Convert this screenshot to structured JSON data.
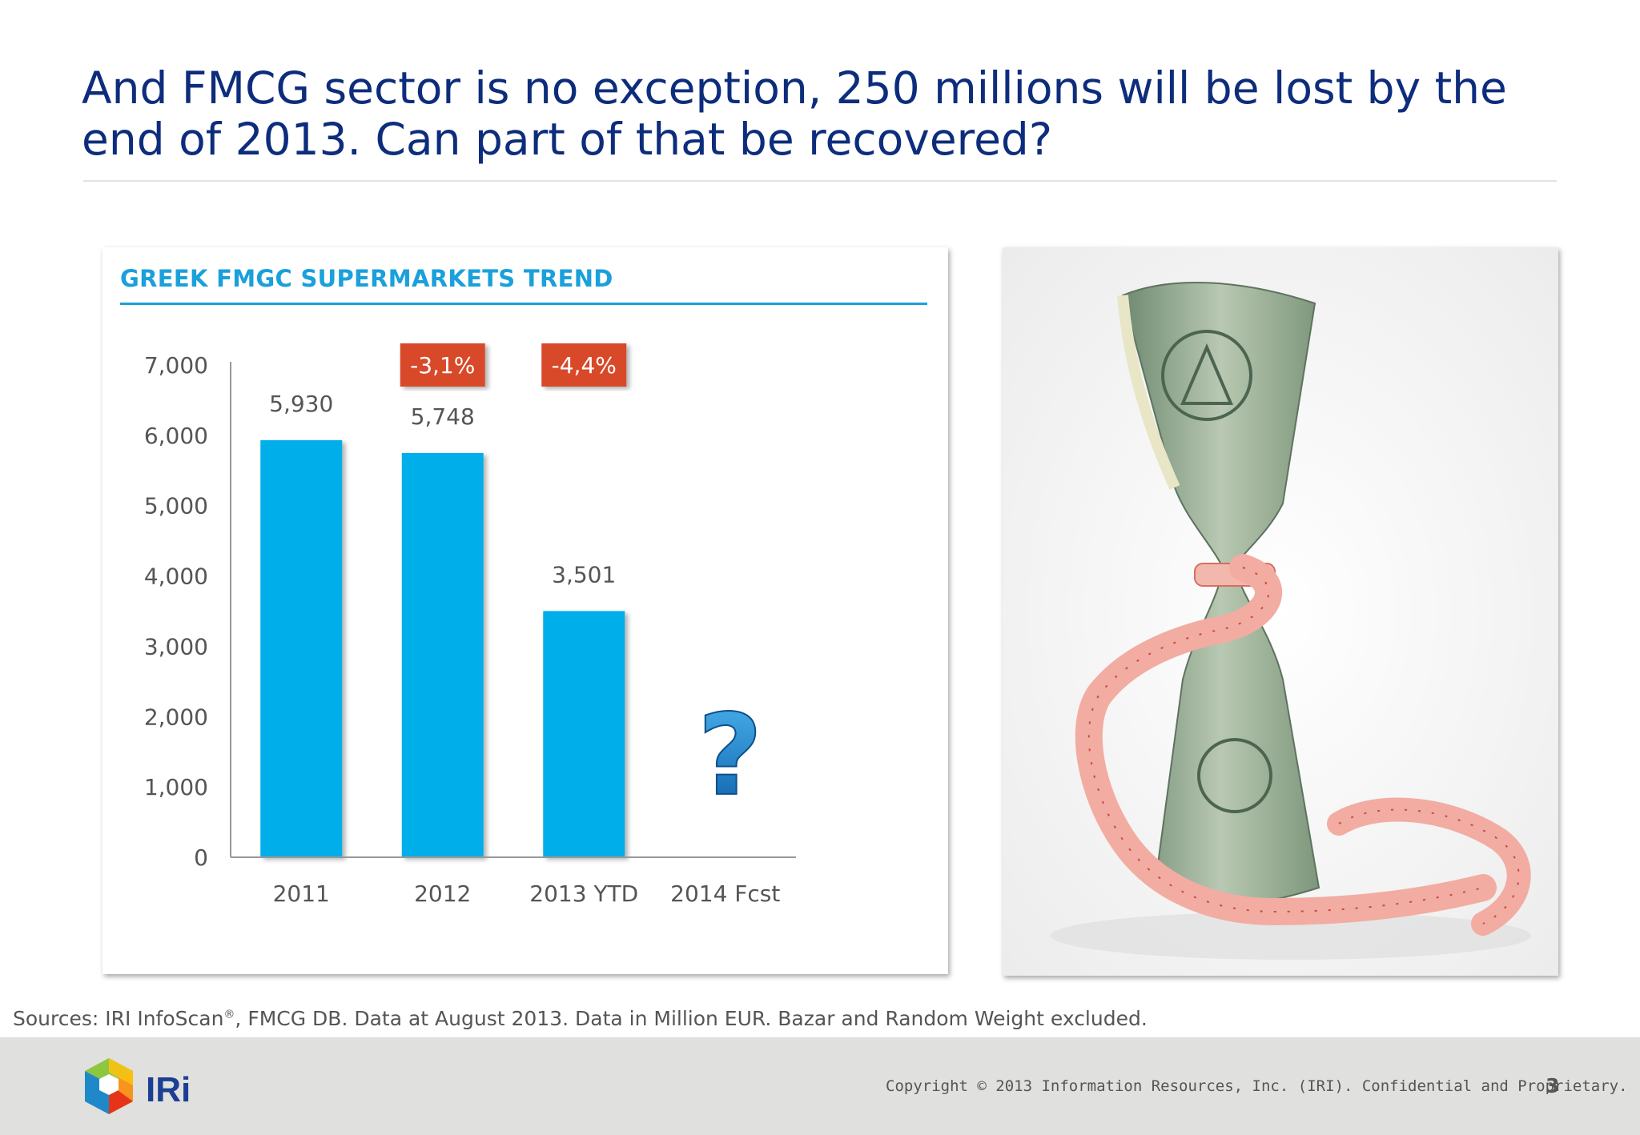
{
  "slide": {
    "title": "And FMCG sector is no exception, 250 millions will be lost by the end of 2013. Can part of that be recovered?",
    "sources_text": "Sources: IRI InfoScan",
    "sources_mark": "®",
    "sources_rest": ", FMCG DB. Data at August 2013. Data in  Million EUR. Bazar and Random Weight excluded.",
    "copyright": "Copyright © 2013 Information Resources, Inc. (IRI). Confidential and Proprietary.",
    "page_number": "3",
    "logo_text": "IRi"
  },
  "chart_data": {
    "type": "bar",
    "title": "GREEK FMGC SUPERMARKETS TREND",
    "categories": [
      "2011",
      "2012",
      "2013 YTD",
      "2014 Fcst"
    ],
    "values": [
      5930,
      5748,
      3501,
      null
    ],
    "data_labels": [
      "5,930",
      "5,748",
      "3,501",
      ""
    ],
    "ylim": [
      0,
      7000
    ],
    "y_ticks": [
      0,
      1000,
      2000,
      3000,
      4000,
      5000,
      6000,
      7000
    ],
    "y_tick_labels": [
      "0",
      "1,000",
      "2,000",
      "3,000",
      "4,000",
      "5,000",
      "6,000",
      "7,000"
    ],
    "change_badges": [
      {
        "category": "2012",
        "text": "-3,1%"
      },
      {
        "category": "2013 YTD",
        "text": "-4,4%"
      }
    ],
    "forecast_marker": "?",
    "grid": false,
    "xlabel": "",
    "ylabel": "",
    "colors": {
      "bar": "#00aeea",
      "badge": "#d84a2b",
      "marker": "#1a7fc4",
      "axis": "#999999",
      "text": "#555555"
    }
  }
}
